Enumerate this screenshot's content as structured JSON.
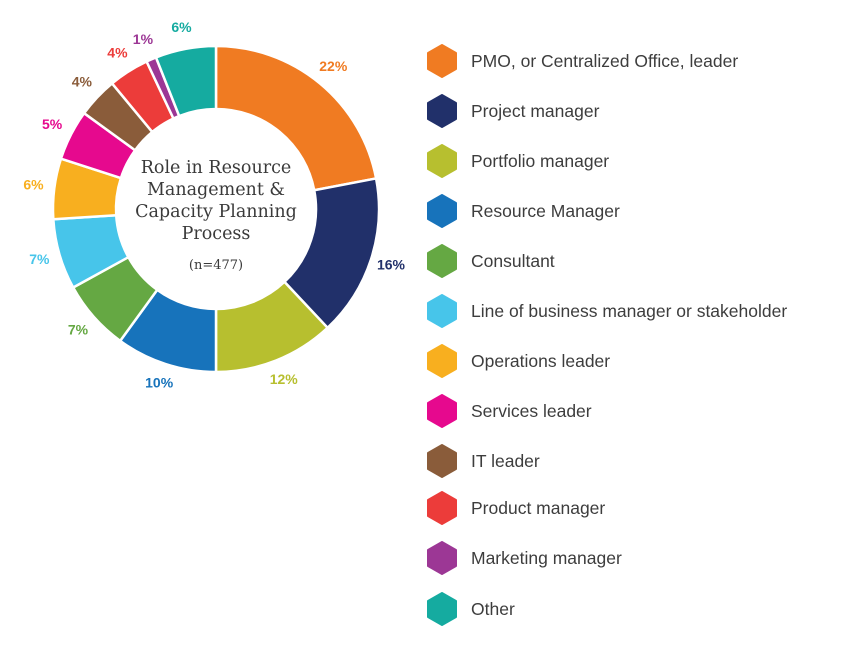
{
  "chart_data": {
    "type": "pie",
    "style": "donut",
    "title": "Role in Resource Management & Capacity Planning Process",
    "subtitle": "(n=477)",
    "legend_position": "right",
    "categories": [
      "PMO, or Centralized Office, leader",
      "Project manager",
      "Portfolio manager",
      "Resource Manager",
      "Consultant",
      "Line of business manager or stakeholder",
      "Operations leader",
      "Services leader",
      "IT leader",
      "Product manager",
      "Marketing manager",
      "Other"
    ],
    "values": [
      22,
      16,
      12,
      10,
      7,
      7,
      6,
      5,
      4,
      4,
      1,
      6
    ],
    "value_labels": [
      "22%",
      "16%",
      "12%",
      "10%",
      "7%",
      "7%",
      "6%",
      "5%",
      "4%",
      "4%",
      "1%",
      "6%"
    ],
    "colors": [
      "#f07b22",
      "#21306a",
      "#b7bf2f",
      "#1773bb",
      "#65a843",
      "#47c5ea",
      "#f8af1f",
      "#e6098e",
      "#8a5c3a",
      "#ec3c3a",
      "#9c3795",
      "#15aba0"
    ]
  }
}
